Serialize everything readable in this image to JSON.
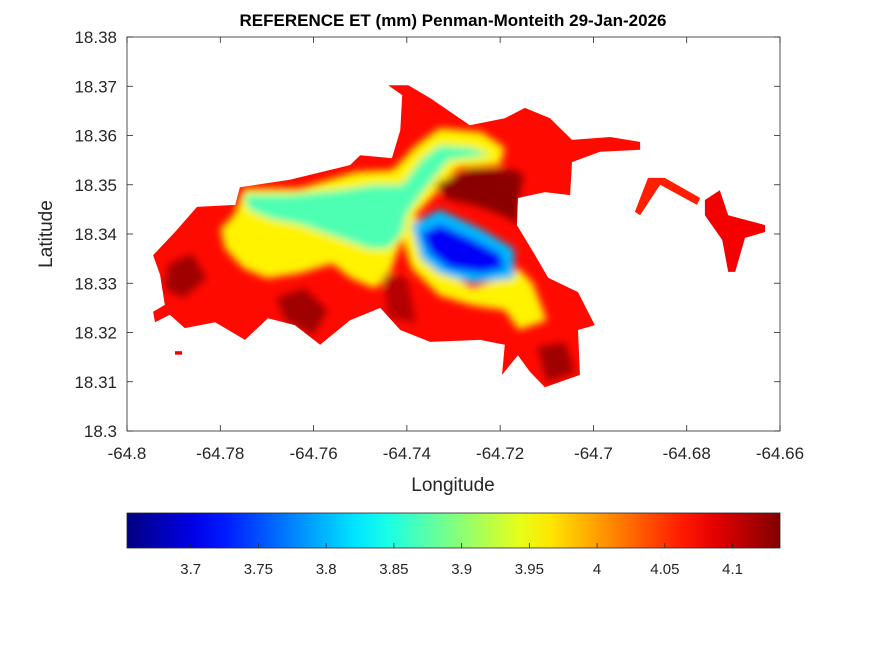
{
  "chart_data": {
    "type": "heatmap",
    "subtype": "filled-contour-map",
    "title": "REFERENCE ET (mm) Penman-Monteith 29-Jan-2026",
    "xlabel": "Longitude",
    "ylabel": "Latitude",
    "xlim": [
      -64.8,
      -64.66
    ],
    "ylim": [
      18.3,
      18.38
    ],
    "xticks": [
      -64.8,
      -64.78,
      -64.76,
      -64.74,
      -64.72,
      -64.7,
      -64.68,
      -64.66
    ],
    "xtick_labels": [
      "-64.8",
      "-64.78",
      "-64.76",
      "-64.74",
      "-64.72",
      "-64.7",
      "-64.68",
      "-64.66"
    ],
    "yticks": [
      18.3,
      18.31,
      18.32,
      18.33,
      18.34,
      18.35,
      18.36,
      18.37,
      18.38
    ],
    "ytick_labels": [
      "18.3",
      "18.31",
      "18.32",
      "18.33",
      "18.34",
      "18.35",
      "18.36",
      "18.37",
      "18.38"
    ],
    "grid": false,
    "colormap": "jet",
    "colorbar": {
      "location": "bottom",
      "clim": [
        3.653,
        4.135
      ],
      "ticks": [
        3.7,
        3.75,
        3.8,
        3.85,
        3.9,
        3.95,
        4,
        4.05,
        4.1
      ],
      "tick_labels": [
        "3.7",
        "3.75",
        "3.8",
        "3.85",
        "3.9",
        "3.95",
        "4",
        "4.05",
        "4.1"
      ]
    },
    "regions": [
      {
        "name": "island-main",
        "value": 4.07,
        "polygon": [
          [
            -64.7944,
            18.3357
          ],
          [
            -64.7897,
            18.3404
          ],
          [
            -64.785,
            18.3455
          ],
          [
            -64.7768,
            18.3459
          ],
          [
            -64.7758,
            18.3495
          ],
          [
            -64.7651,
            18.351
          ],
          [
            -64.7522,
            18.354
          ],
          [
            -64.75,
            18.356
          ],
          [
            -64.7432,
            18.3554
          ],
          [
            -64.7414,
            18.3611
          ],
          [
            -64.741,
            18.3682
          ],
          [
            -64.744,
            18.3702
          ],
          [
            -64.7397,
            18.3702
          ],
          [
            -64.735,
            18.3676
          ],
          [
            -64.7265,
            18.3621
          ],
          [
            -64.719,
            18.3635
          ],
          [
            -64.7147,
            18.3656
          ],
          [
            -64.7093,
            18.3635
          ],
          [
            -64.7046,
            18.3591
          ],
          [
            -64.6964,
            18.3597
          ],
          [
            -64.69,
            18.3587
          ],
          [
            -64.69,
            18.3571
          ],
          [
            -64.6986,
            18.3567
          ],
          [
            -64.7046,
            18.3546
          ],
          [
            -64.705,
            18.3479
          ],
          [
            -64.7104,
            18.3485
          ],
          [
            -64.7162,
            18.3473
          ],
          [
            -64.7164,
            18.3418
          ],
          [
            -64.7125,
            18.3357
          ],
          [
            -64.7097,
            18.3311
          ],
          [
            -64.7033,
            18.3282
          ],
          [
            -64.6997,
            18.3215
          ],
          [
            -64.7033,
            18.3205
          ],
          [
            -64.7029,
            18.3114
          ],
          [
            -64.7104,
            18.3089
          ],
          [
            -64.7136,
            18.312
          ],
          [
            -64.7162,
            18.3154
          ],
          [
            -64.7196,
            18.3114
          ],
          [
            -64.719,
            18.3175
          ],
          [
            -64.7243,
            18.3185
          ],
          [
            -64.735,
            18.3181
          ],
          [
            -64.7414,
            18.3205
          ],
          [
            -64.7457,
            18.325
          ],
          [
            -64.7522,
            18.3225
          ],
          [
            -64.7586,
            18.3175
          ],
          [
            -64.764,
            18.3215
          ],
          [
            -64.7698,
            18.3229
          ],
          [
            -64.7747,
            18.3185
          ],
          [
            -64.7811,
            18.3221
          ],
          [
            -64.7876,
            18.3209
          ],
          [
            -64.7908,
            18.3236
          ],
          [
            -64.794,
            18.3221
          ],
          [
            -64.7944,
            18.3242
          ],
          [
            -64.7919,
            18.3256
          ],
          [
            -64.7929,
            18.3317
          ]
        ]
      },
      {
        "name": "island-east",
        "value": 4.08,
        "polygon": [
          [
            -64.6761,
            18.3469
          ],
          [
            -64.6729,
            18.3489
          ],
          [
            -64.6711,
            18.3438
          ],
          [
            -64.6632,
            18.3418
          ],
          [
            -64.6632,
            18.3404
          ],
          [
            -64.6675,
            18.3392
          ],
          [
            -64.6696,
            18.3323
          ],
          [
            -64.6711,
            18.3323
          ],
          [
            -64.6724,
            18.3388
          ],
          [
            -64.6761,
            18.3438
          ]
        ]
      },
      {
        "name": "island-strip",
        "value": 4.06,
        "polygon": [
          [
            -64.6883,
            18.3514
          ],
          [
            -64.6847,
            18.3514
          ],
          [
            -64.6771,
            18.3473
          ],
          [
            -64.6778,
            18.3459
          ],
          [
            -64.6857,
            18.35
          ],
          [
            -64.69,
            18.3438
          ],
          [
            -64.6911,
            18.3445
          ]
        ]
      },
      {
        "name": "islet-west",
        "value": 4.08,
        "polygon": [
          [
            -64.7897,
            18.3162
          ],
          [
            -64.7882,
            18.3162
          ],
          [
            -64.7882,
            18.3155
          ],
          [
            -64.7897,
            18.3155
          ]
        ]
      },
      {
        "name": "band-yellow",
        "value": 3.96,
        "polygon": [
          [
            -64.777,
            18.344
          ],
          [
            -64.775,
            18.3493
          ],
          [
            -64.763,
            18.3493
          ],
          [
            -64.751,
            18.3526
          ],
          [
            -64.743,
            18.353
          ],
          [
            -64.738,
            18.358
          ],
          [
            -64.733,
            18.3615
          ],
          [
            -64.724,
            18.3607
          ],
          [
            -64.719,
            18.3575
          ],
          [
            -64.72,
            18.354
          ],
          [
            -64.729,
            18.3534
          ],
          [
            -64.734,
            18.348
          ],
          [
            -64.738,
            18.344
          ],
          [
            -64.737,
            18.339
          ],
          [
            -64.732,
            18.333
          ],
          [
            -64.726,
            18.329
          ],
          [
            -64.72,
            18.331
          ],
          [
            -64.716,
            18.333
          ],
          [
            -64.713,
            18.33
          ],
          [
            -64.71,
            18.3225
          ],
          [
            -64.716,
            18.3205
          ],
          [
            -64.719,
            18.3245
          ],
          [
            -64.726,
            18.3255
          ],
          [
            -64.733,
            18.3275
          ],
          [
            -64.739,
            18.333
          ],
          [
            -64.741,
            18.339
          ],
          [
            -64.744,
            18.331
          ],
          [
            -64.747,
            18.329
          ],
          [
            -64.752,
            18.331
          ],
          [
            -64.756,
            18.334
          ],
          [
            -64.763,
            18.332
          ],
          [
            -64.77,
            18.331
          ],
          [
            -64.775,
            18.333
          ],
          [
            -64.779,
            18.337
          ],
          [
            -64.78,
            18.341
          ]
        ]
      },
      {
        "name": "band-cyan",
        "value": 3.87,
        "polygon": [
          [
            -64.775,
            18.348
          ],
          [
            -64.765,
            18.348
          ],
          [
            -64.754,
            18.349
          ],
          [
            -64.747,
            18.35
          ],
          [
            -64.741,
            18.35
          ],
          [
            -64.737,
            18.355
          ],
          [
            -64.733,
            18.358
          ],
          [
            -64.726,
            18.3575
          ],
          [
            -64.722,
            18.356
          ],
          [
            -64.731,
            18.355
          ],
          [
            -64.737,
            18.348
          ],
          [
            -64.74,
            18.344
          ],
          [
            -64.741,
            18.34
          ],
          [
            -64.744,
            18.337
          ],
          [
            -64.748,
            18.337
          ],
          [
            -64.754,
            18.339
          ],
          [
            -64.763,
            18.342
          ],
          [
            -64.769,
            18.343
          ],
          [
            -64.774,
            18.345
          ]
        ]
      },
      {
        "name": "band-lightblue",
        "value": 3.8,
        "polygon": [
          [
            -64.739,
            18.342
          ],
          [
            -64.733,
            18.345
          ],
          [
            -64.724,
            18.341
          ],
          [
            -64.717,
            18.337
          ],
          [
            -64.717,
            18.331
          ],
          [
            -64.726,
            18.33
          ],
          [
            -64.733,
            18.332
          ],
          [
            -64.737,
            18.335
          ]
        ]
      },
      {
        "name": "core-blue",
        "value": 3.71,
        "polygon": [
          [
            -64.737,
            18.34
          ],
          [
            -64.733,
            18.342
          ],
          [
            -64.726,
            18.339
          ],
          [
            -64.72,
            18.336
          ],
          [
            -64.719,
            18.333
          ],
          [
            -64.724,
            18.332
          ],
          [
            -64.731,
            18.333
          ],
          [
            -64.735,
            18.336
          ]
        ]
      },
      {
        "name": "high-darkred-north",
        "value": 4.13,
        "polygon": [
          [
            -64.734,
            18.35
          ],
          [
            -64.726,
            18.3534
          ],
          [
            -64.717,
            18.353
          ],
          [
            -64.715,
            18.352
          ],
          [
            -64.716,
            18.347
          ],
          [
            -64.716,
            18.342
          ],
          [
            -64.72,
            18.344
          ],
          [
            -64.726,
            18.346
          ],
          [
            -64.731,
            18.347
          ]
        ]
      },
      {
        "name": "high-darkred-southwest",
        "value": 4.12,
        "polygon": [
          [
            -64.768,
            18.327
          ],
          [
            -64.762,
            18.329
          ],
          [
            -64.757,
            18.3245
          ],
          [
            -64.76,
            18.3195
          ],
          [
            -64.766,
            18.3225
          ]
        ]
      },
      {
        "name": "high-darkred-west",
        "value": 4.12,
        "polygon": [
          [
            -64.791,
            18.334
          ],
          [
            -64.786,
            18.336
          ],
          [
            -64.783,
            18.331
          ],
          [
            -64.788,
            18.327
          ],
          [
            -64.792,
            18.329
          ]
        ]
      },
      {
        "name": "high-darkred-south",
        "value": 4.12,
        "polygon": [
          [
            -64.712,
            18.317
          ],
          [
            -64.706,
            18.318
          ],
          [
            -64.704,
            18.312
          ],
          [
            -64.71,
            18.31
          ]
        ]
      },
      {
        "name": "high-darkred-center",
        "value": 4.11,
        "polygon": [
          [
            -64.745,
            18.332
          ],
          [
            -64.74,
            18.331
          ],
          [
            -64.738,
            18.322
          ],
          [
            -64.744,
            18.323
          ]
        ]
      }
    ]
  }
}
